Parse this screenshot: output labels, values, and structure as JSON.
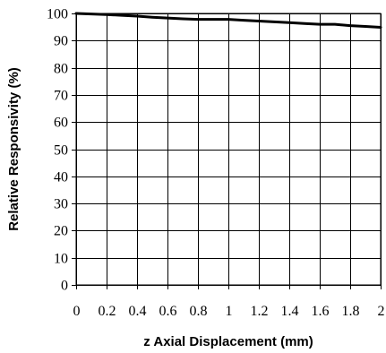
{
  "chart_data": {
    "type": "line",
    "title": "",
    "xlabel": "z Axial Displacement (mm)",
    "ylabel": "Relative Responsivity (%)",
    "xlim": [
      0,
      2
    ],
    "ylim": [
      0,
      100
    ],
    "x_ticks": [
      0,
      0.2,
      0.4,
      0.6,
      0.8,
      1,
      1.2,
      1.4,
      1.6,
      1.8,
      2
    ],
    "y_ticks": [
      0,
      10,
      20,
      30,
      40,
      50,
      60,
      70,
      80,
      90,
      100
    ],
    "grid": true,
    "legend": "none",
    "series": [
      {
        "color": "#000000",
        "x": [
          0,
          0.1,
          0.2,
          0.3,
          0.4,
          0.5,
          0.6,
          0.7,
          0.8,
          0.9,
          1.0,
          1.1,
          1.2,
          1.3,
          1.4,
          1.5,
          1.6,
          1.7,
          1.8,
          1.9,
          2.0
        ],
        "y": [
          100,
          99.8,
          99.6,
          99.3,
          99.0,
          98.6,
          98.3,
          98.0,
          97.8,
          97.8,
          97.8,
          97.5,
          97.2,
          96.9,
          96.6,
          96.3,
          96.0,
          96.0,
          95.5,
          95.2,
          94.9
        ]
      }
    ]
  }
}
